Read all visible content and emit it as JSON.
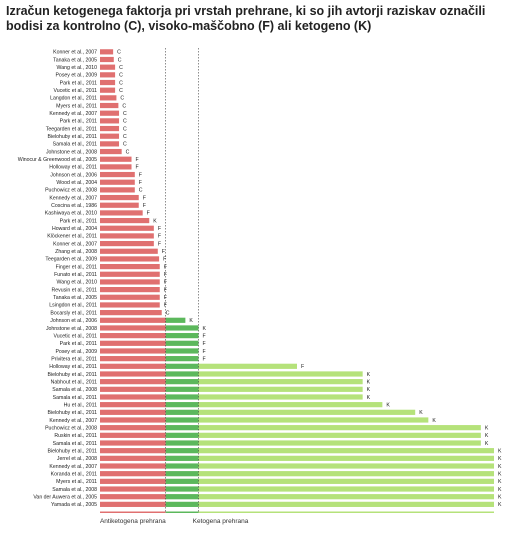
{
  "chart_data": {
    "type": "bar",
    "orientation": "horizontal",
    "title": "Izračun ketogenega faktorja pri vrstah prehrane, ki so jih avtorji raziskav označili bodisi za kontrolno (C), visoko-maščobno (F) ali ketogeno (K)",
    "zones": [
      {
        "label": "Antiketogena prehrana",
        "max": 1.0,
        "color": "#e07070"
      },
      {
        "label": "",
        "max": 1.5,
        "color": "#5cb85c"
      },
      {
        "label": "Ketogena prehrana",
        "max": 6.0,
        "color": "#b5e27a"
      }
    ],
    "xlim": [
      0,
      6.0
    ],
    "bars": [
      {
        "study": "Konner et al., 2007",
        "value": 0.2,
        "class": "C"
      },
      {
        "study": "Tanaka et al., 2005",
        "value": 0.21,
        "class": "C"
      },
      {
        "study": "Wang et al., 2010",
        "value": 0.23,
        "class": "C"
      },
      {
        "study": "Posey et al., 2009",
        "value": 0.23,
        "class": "C"
      },
      {
        "study": "Park et al., 2011",
        "value": 0.23,
        "class": "C"
      },
      {
        "study": "Vucetic et al., 2011",
        "value": 0.23,
        "class": "C"
      },
      {
        "study": "Langdon et al., 2011",
        "value": 0.25,
        "class": "C"
      },
      {
        "study": "Myers et al., 2011",
        "value": 0.28,
        "class": "C"
      },
      {
        "study": "Kennedy et al., 2007",
        "value": 0.29,
        "class": "C"
      },
      {
        "study": "Park et al., 2011",
        "value": 0.29,
        "class": "C"
      },
      {
        "study": "Teegarden et al., 2011",
        "value": 0.29,
        "class": "C"
      },
      {
        "study": "Bielohuby et al., 2011",
        "value": 0.29,
        "class": "C"
      },
      {
        "study": "Samala et al., 2011",
        "value": 0.29,
        "class": "C"
      },
      {
        "study": "Johnstone et al., 2008",
        "value": 0.33,
        "class": "C"
      },
      {
        "study": "Winocur & Greenwood et al., 2005",
        "value": 0.48,
        "class": "F"
      },
      {
        "study": "Holloway et al., 2011",
        "value": 0.48,
        "class": "F"
      },
      {
        "study": "Johnson et al., 2006",
        "value": 0.53,
        "class": "F"
      },
      {
        "study": "Wood et al., 2004",
        "value": 0.53,
        "class": "F"
      },
      {
        "study": "Puchowicz et al., 2008",
        "value": 0.53,
        "class": "C"
      },
      {
        "study": "Kennedy et al., 2007",
        "value": 0.59,
        "class": "F"
      },
      {
        "study": "Coscina et al., 1986",
        "value": 0.59,
        "class": "F"
      },
      {
        "study": "Kashiwaya et al., 2010",
        "value": 0.65,
        "class": "F"
      },
      {
        "study": "Park et al., 2011",
        "value": 0.75,
        "class": "K"
      },
      {
        "study": "Howard et al., 2004",
        "value": 0.82,
        "class": "F"
      },
      {
        "study": "Klöckener et al., 2011",
        "value": 0.82,
        "class": "F"
      },
      {
        "study": "Konner et al., 2007",
        "value": 0.82,
        "class": "F"
      },
      {
        "study": "Zhang et al., 2008",
        "value": 0.88,
        "class": "F"
      },
      {
        "study": "Teegarden et al., 2009",
        "value": 0.9,
        "class": "F"
      },
      {
        "study": "Finger et al., 2011",
        "value": 0.91,
        "class": "F"
      },
      {
        "study": "Funato et al., 2011",
        "value": 0.91,
        "class": "F"
      },
      {
        "study": "Wang et al., 2010",
        "value": 0.91,
        "class": "F"
      },
      {
        "study": "Revusin et al., 2011",
        "value": 0.91,
        "class": "F"
      },
      {
        "study": "Tanaka et al., 2005",
        "value": 0.91,
        "class": "F"
      },
      {
        "study": "Lsingdon et al., 2011",
        "value": 0.91,
        "class": "F"
      },
      {
        "study": "Bocarsly et al., 2011",
        "value": 0.94,
        "class": "C"
      },
      {
        "study": "Johnson et al., 2006",
        "value": 1.3,
        "class": "K"
      },
      {
        "study": "Johnstone et al., 2008",
        "value": 1.5,
        "class": "K"
      },
      {
        "study": "Vucetic et al., 2011",
        "value": 1.5,
        "class": "F"
      },
      {
        "study": "Park et al., 2011",
        "value": 1.5,
        "class": "F"
      },
      {
        "study": "Posey et al., 2009",
        "value": 1.5,
        "class": "F"
      },
      {
        "study": "Privitera et al., 2011",
        "value": 1.5,
        "class": "F"
      },
      {
        "study": "Holloway et al., 2011",
        "value": 3.0,
        "class": "F"
      },
      {
        "study": "Bielohuby et al., 2011",
        "value": 4.0,
        "class": "K"
      },
      {
        "study": "Nabhout et al., 2011",
        "value": 4.0,
        "class": "K"
      },
      {
        "study": "Samala et al., 2008",
        "value": 4.0,
        "class": "K"
      },
      {
        "study": "Samala et al., 2011",
        "value": 4.0,
        "class": "K"
      },
      {
        "study": "Hu et al., 2011",
        "value": 4.3,
        "class": "K"
      },
      {
        "study": "Bielohuby et al., 2011",
        "value": 4.8,
        "class": "K"
      },
      {
        "study": "Kennedy et al., 2007",
        "value": 5.0,
        "class": "K"
      },
      {
        "study": "Puchowicz et al., 2008",
        "value": 5.8,
        "class": "K"
      },
      {
        "study": "Ruskin et al., 2011",
        "value": 5.8,
        "class": "K"
      },
      {
        "study": "Samala et al., 2011",
        "value": 5.8,
        "class": "K"
      },
      {
        "study": "Bielohuby et al., 2011",
        "value": 6.0,
        "class": "K"
      },
      {
        "study": "Jerrel et al., 2008",
        "value": 6.0,
        "class": "K"
      },
      {
        "study": "Kennedy et al., 2007",
        "value": 6.0,
        "class": "K"
      },
      {
        "study": "Koranda et al., 2011",
        "value": 6.0,
        "class": "K"
      },
      {
        "study": "Myers et al., 2011",
        "value": 6.0,
        "class": "K"
      },
      {
        "study": "Samala et al., 2008",
        "value": 6.0,
        "class": "K"
      },
      {
        "study": "Van der Auwera et al., 2005",
        "value": 6.0,
        "class": "K"
      },
      {
        "study": "Yamada et al., 2005",
        "value": 6.0,
        "class": "K"
      }
    ]
  }
}
